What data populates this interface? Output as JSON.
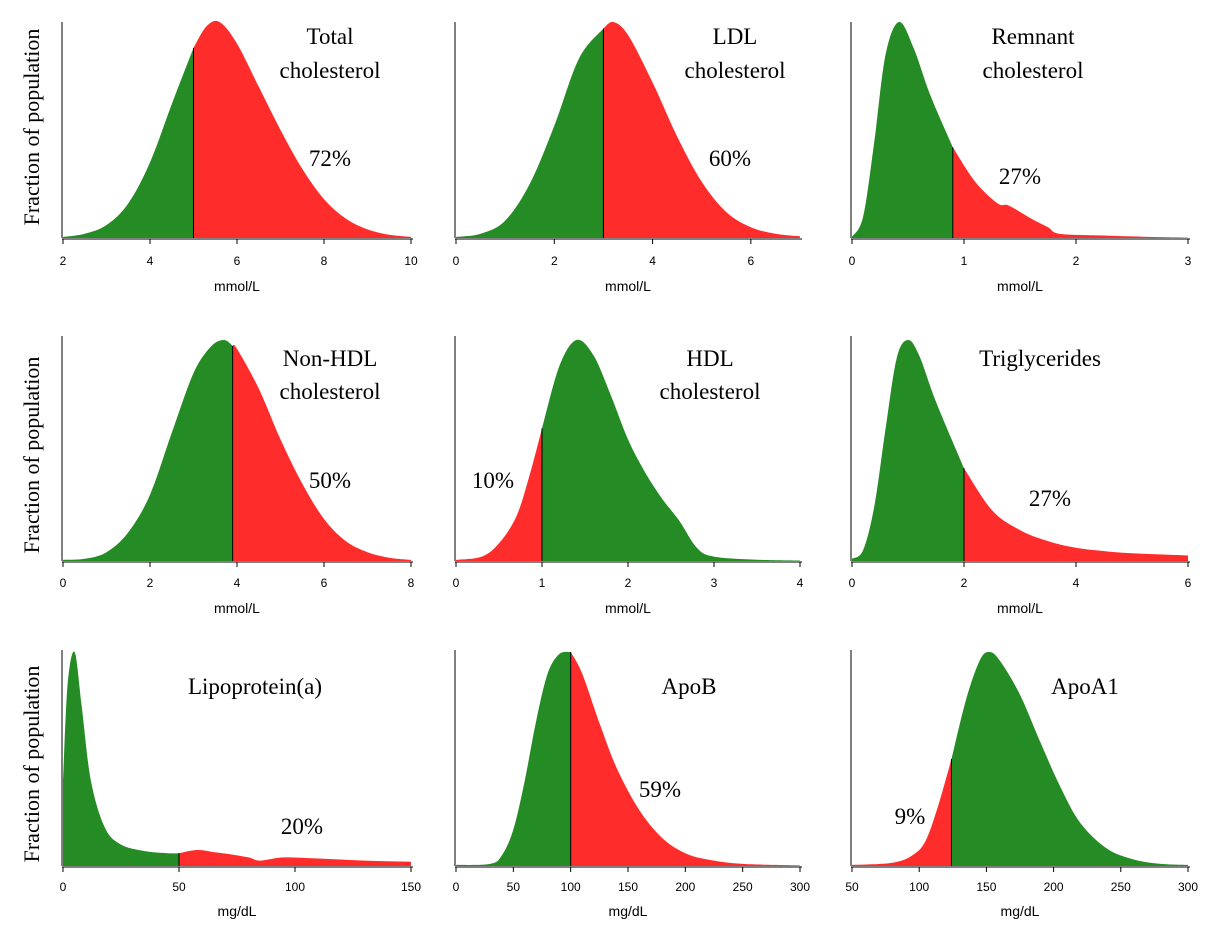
{
  "figure": {
    "ylabel": "Fraction of population"
  },
  "colors": {
    "low": "#258b25",
    "high": "#ff2c2c",
    "divider": "#000000"
  },
  "chart_data": [
    {
      "type": "area",
      "title": [
        "Total",
        "cholesterol"
      ],
      "xlabel": "mmol/L",
      "ylabel": "Fraction of population",
      "xlim": [
        2,
        10
      ],
      "xticks": [
        2,
        4,
        6,
        8,
        10
      ],
      "cutoff": 5,
      "above_cutoff_color": "high",
      "percent_label": "72%",
      "density": {
        "x": [
          2.0,
          2.5,
          3.0,
          3.5,
          4.0,
          4.5,
          5.0,
          5.3,
          5.6,
          6.0,
          6.5,
          7.0,
          7.5,
          8.0,
          8.5,
          9.0,
          9.5,
          10.0
        ],
        "y": [
          0.005,
          0.02,
          0.06,
          0.16,
          0.35,
          0.62,
          0.88,
          0.98,
          1.0,
          0.9,
          0.7,
          0.5,
          0.32,
          0.18,
          0.09,
          0.04,
          0.015,
          0.005
        ]
      }
    },
    {
      "type": "area",
      "title": [
        "LDL",
        "cholesterol"
      ],
      "xlabel": "mmol/L",
      "ylabel": "",
      "xlim": [
        0,
        7
      ],
      "xticks": [
        0,
        2,
        4,
        6
      ],
      "cutoff": 3,
      "above_cutoff_color": "high",
      "percent_label": "60%",
      "density": {
        "x": [
          0.0,
          0.5,
          1.0,
          1.5,
          2.0,
          2.5,
          3.0,
          3.2,
          3.5,
          4.0,
          4.5,
          5.0,
          5.5,
          6.0,
          6.5,
          7.0
        ],
        "y": [
          0.005,
          0.02,
          0.08,
          0.25,
          0.52,
          0.83,
          0.97,
          1.0,
          0.94,
          0.72,
          0.47,
          0.26,
          0.12,
          0.05,
          0.02,
          0.008
        ]
      }
    },
    {
      "type": "area",
      "title": [
        "Remnant",
        "cholesterol"
      ],
      "xlabel": "mmol/L",
      "ylabel": "",
      "xlim": [
        0,
        3
      ],
      "xticks": [
        0,
        1,
        2,
        3
      ],
      "cutoff": 0.9,
      "above_cutoff_color": "high",
      "percent_label": "27%",
      "density": {
        "x": [
          0.0,
          0.1,
          0.2,
          0.3,
          0.42,
          0.55,
          0.7,
          0.9,
          1.1,
          1.3,
          1.4,
          1.6,
          1.75,
          1.85,
          2.2,
          2.6,
          3.0
        ],
        "y": [
          0.005,
          0.1,
          0.45,
          0.85,
          1.0,
          0.88,
          0.66,
          0.42,
          0.26,
          0.16,
          0.15,
          0.09,
          0.05,
          0.02,
          0.012,
          0.006,
          0.002
        ]
      }
    },
    {
      "type": "area",
      "title": [
        "Non-HDL",
        "cholesterol"
      ],
      "xlabel": "mmol/L",
      "ylabel": "Fraction of population",
      "xlim": [
        0,
        8
      ],
      "xticks": [
        0,
        2,
        4,
        6,
        8
      ],
      "cutoff": 3.9,
      "above_cutoff_color": "high",
      "percent_label": "50%",
      "density": {
        "x": [
          0.0,
          0.5,
          1.0,
          1.5,
          2.0,
          2.5,
          3.0,
          3.4,
          3.7,
          4.0,
          4.5,
          5.0,
          5.5,
          6.0,
          6.5,
          7.0,
          7.5,
          8.0
        ],
        "y": [
          0.005,
          0.01,
          0.04,
          0.13,
          0.3,
          0.58,
          0.85,
          0.97,
          1.0,
          0.96,
          0.78,
          0.55,
          0.35,
          0.19,
          0.09,
          0.04,
          0.015,
          0.005
        ]
      }
    },
    {
      "type": "area",
      "title": [
        "HDL",
        "cholesterol"
      ],
      "xlabel": "mmol/L",
      "ylabel": "",
      "xlim": [
        0,
        4
      ],
      "xticks": [
        0,
        1,
        2,
        3,
        4
      ],
      "cutoff": 1,
      "above_cutoff_color": "low",
      "percent_label": "10%",
      "density": {
        "x": [
          0.0,
          0.3,
          0.5,
          0.7,
          0.85,
          1.0,
          1.2,
          1.4,
          1.6,
          1.8,
          2.0,
          2.2,
          2.4,
          2.6,
          2.8,
          3.0,
          3.5,
          4.0
        ],
        "y": [
          0.005,
          0.02,
          0.08,
          0.2,
          0.38,
          0.6,
          0.88,
          1.0,
          0.93,
          0.75,
          0.55,
          0.4,
          0.28,
          0.18,
          0.06,
          0.02,
          0.006,
          0.002
        ]
      }
    },
    {
      "type": "area",
      "title": [
        "Triglycerides"
      ],
      "xlabel": "mmol/L",
      "ylabel": "",
      "xlim": [
        0,
        6
      ],
      "xticks": [
        0,
        2,
        4,
        6
      ],
      "cutoff": 2,
      "above_cutoff_color": "high",
      "percent_label": "27%",
      "density": {
        "x": [
          0.0,
          0.2,
          0.4,
          0.6,
          0.8,
          1.0,
          1.2,
          1.5,
          2.0,
          2.5,
          3.0,
          3.5,
          4.0,
          4.5,
          5.0,
          6.0
        ],
        "y": [
          0.01,
          0.05,
          0.25,
          0.6,
          0.92,
          1.0,
          0.93,
          0.72,
          0.42,
          0.23,
          0.14,
          0.09,
          0.06,
          0.045,
          0.035,
          0.025
        ]
      }
    },
    {
      "type": "area",
      "title": [
        "Lipoprotein(a)"
      ],
      "xlabel": "mg/dL",
      "ylabel": "Fraction of population",
      "xlim": [
        0,
        150
      ],
      "xticks": [
        0,
        50,
        100,
        150
      ],
      "cutoff": 50,
      "above_cutoff_color": "high",
      "percent_label": "20%",
      "density": {
        "x": [
          0,
          2,
          5,
          8,
          12,
          18,
          25,
          35,
          45,
          50,
          58,
          65,
          72,
          80,
          85,
          95,
          110,
          130,
          150
        ],
        "y": [
          0.4,
          0.85,
          1.0,
          0.75,
          0.4,
          0.18,
          0.1,
          0.07,
          0.06,
          0.06,
          0.075,
          0.065,
          0.055,
          0.04,
          0.025,
          0.04,
          0.035,
          0.025,
          0.02
        ]
      }
    },
    {
      "type": "area",
      "title": [
        "ApoB"
      ],
      "xlabel": "mg/dL",
      "ylabel": "",
      "xlim": [
        0,
        300
      ],
      "xticks": [
        0,
        50,
        100,
        150,
        200,
        250,
        300
      ],
      "cutoff": 100,
      "above_cutoff_color": "high",
      "percent_label": "59%",
      "density": {
        "x": [
          0,
          30,
          40,
          50,
          60,
          70,
          80,
          90,
          100,
          110,
          125,
          140,
          160,
          180,
          200,
          220,
          250,
          300
        ],
        "y": [
          0.005,
          0.01,
          0.05,
          0.17,
          0.4,
          0.68,
          0.9,
          0.99,
          1.0,
          0.9,
          0.67,
          0.46,
          0.26,
          0.13,
          0.06,
          0.03,
          0.01,
          0.003
        ]
      }
    },
    {
      "type": "area",
      "title": [
        "ApoA1"
      ],
      "xlabel": "mg/dL",
      "ylabel": "",
      "xlim": [
        50,
        300
      ],
      "xticks": [
        50,
        100,
        150,
        200,
        250,
        300
      ],
      "cutoff": 124,
      "above_cutoff_color": "low",
      "percent_label": "9%",
      "density": {
        "x": [
          50,
          80,
          95,
          105,
          115,
          124,
          135,
          145,
          152,
          160,
          175,
          190,
          205,
          220,
          240,
          260,
          280,
          300
        ],
        "y": [
          0.005,
          0.015,
          0.05,
          0.12,
          0.3,
          0.5,
          0.78,
          0.96,
          1.0,
          0.96,
          0.8,
          0.58,
          0.37,
          0.2,
          0.08,
          0.03,
          0.01,
          0.005
        ]
      }
    }
  ]
}
